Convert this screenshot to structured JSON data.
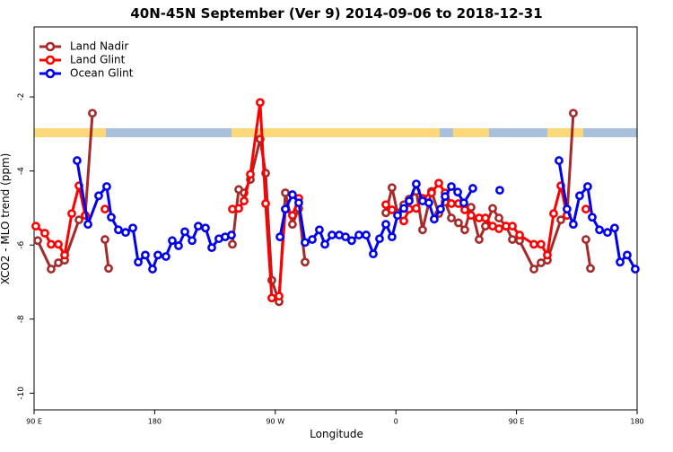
{
  "chart_data": {
    "type": "line",
    "title": "40N-45N September (Ver 9)   2014-09-06 to 2018-12-31",
    "x_label": "Longitude",
    "y_label": "XCO2 - MLO trend (ppm)",
    "xlim": [
      90,
      540
    ],
    "xticks": [
      {
        "value": 90,
        "label": "90 E"
      },
      180,
      {
        "value": 270,
        "label": "90 W"
      },
      {
        "value": 360,
        "label": "0"
      },
      {
        "value": 450,
        "label": "90 E"
      },
      {
        "value": 540,
        "label": "180"
      }
    ],
    "ylim": [
      -10.45,
      -0.11
    ],
    "yticks": [
      -10,
      -8,
      -6,
      -4,
      -2
    ],
    "legend": "top-left",
    "series": [
      {
        "name": "Land Nadir",
        "color": "#a52a2a",
        "x": [
          92.7,
          102.7,
          108.1,
          112.8,
          123.5,
          128.2,
          133.5,
          null,
          142.9,
          145.6,
          null,
          238.0,
          242.7,
          246.7,
          251.4,
          258.7,
          262.8,
          267.4,
          272.8,
          277.5,
          282.8,
          287.5,
          292.2,
          null,
          352.5,
          357.1,
          361.2,
          365.9,
          369.9,
          375.2,
          379.9,
          386.6,
          392.0,
          396.7,
          401.4,
          406.7,
          411.4,
          416.1,
          422.1,
          426.8,
          432.2,
          436.9,
          442.2,
          446.9,
          452.3,
          463.0,
          468.3,
          473.0,
          483.1,
          487.7,
          492.4,
          null,
          501.8,
          505.2
        ],
        "values": [
          -5.88,
          -6.65,
          -6.48,
          -6.41,
          -5.32,
          -5.2,
          -2.44,
          null,
          -5.85,
          -6.63,
          null,
          -5.98,
          -4.5,
          -4.59,
          -4.23,
          -3.14,
          -4.06,
          -6.95,
          -7.53,
          -4.59,
          -5.44,
          -5.01,
          -6.46,
          null,
          -5.13,
          -4.45,
          -5.13,
          -4.91,
          -4.76,
          -4.55,
          -5.59,
          -4.55,
          -5.15,
          -4.84,
          -5.27,
          -5.4,
          -5.59,
          -4.98,
          -5.85,
          -5.49,
          -5.01,
          -5.27,
          -5.49,
          -5.85,
          -5.88,
          -6.65,
          -6.48,
          -6.41,
          -5.32,
          -5.2,
          -2.44,
          null,
          -5.85,
          -6.63
        ]
      },
      {
        "name": "Land Glint",
        "color": "#ff0000",
        "x": [
          91.3,
          98.0,
          102.7,
          108.1,
          112.8,
          118.1,
          123.5,
          128.2,
          null,
          142.9,
          null,
          238.0,
          242.7,
          246.7,
          251.4,
          258.7,
          262.8,
          267.4,
          272.8,
          277.5,
          282.8,
          287.5,
          null,
          352.5,
          357.1,
          365.9,
          369.9,
          375.2,
          379.9,
          386.6,
          392.0,
          396.7,
          401.4,
          406.7,
          411.4,
          416.1,
          422.1,
          426.8,
          432.2,
          436.9,
          442.2,
          446.9,
          452.3,
          463.0,
          468.3,
          473.0,
          477.7,
          483.1,
          487.7,
          null,
          501.8
        ],
        "values": [
          -5.49,
          -5.68,
          -5.98,
          -5.98,
          -6.27,
          -5.15,
          -4.4,
          -5.2,
          null,
          -5.03,
          null,
          -5.03,
          -5.01,
          -4.81,
          -4.09,
          -2.15,
          -4.88,
          -7.43,
          -7.38,
          -5.03,
          -5.2,
          -4.74,
          null,
          -4.91,
          -5.05,
          -5.35,
          -5.03,
          -5.01,
          -4.74,
          -4.59,
          -4.33,
          -4.59,
          -4.88,
          -4.88,
          -5.05,
          -5.2,
          -5.27,
          -5.27,
          -5.49,
          -5.56,
          -5.49,
          -5.49,
          -5.73,
          -5.98,
          -5.98,
          -6.27,
          -5.15,
          -4.4,
          -5.2,
          null,
          -5.03
        ]
      },
      {
        "name": "Ocean Glint",
        "color": "#0000ee",
        "x": [
          122.1,
          130.2,
          138.2,
          144.2,
          147.6,
          152.9,
          158.3,
          163.7,
          167.7,
          173.0,
          178.4,
          182.4,
          188.4,
          193.1,
          197.8,
          202.5,
          207.9,
          212.5,
          217.9,
          222.6,
          227.9,
          232.6,
          237.3,
          null,
          273.5,
          277.5,
          282.8,
          287.5,
          292.2,
          297.6,
          302.9,
          307.0,
          312.3,
          317.7,
          322.4,
          327.0,
          332.4,
          337.8,
          343.1,
          347.8,
          352.5,
          357.1,
          361.2,
          365.9,
          369.9,
          375.2,
          379.9,
          384.6,
          388.6,
          393.3,
          396.7,
          401.4,
          406.1,
          410.7,
          417.4,
          null,
          437.5,
          null,
          481.7,
          487.7,
          492.4,
          497.1,
          503.1,
          506.5,
          511.9,
          517.9,
          523.2,
          527.3,
          532.6,
          538.6
        ],
        "values": [
          -3.72,
          -5.44,
          -4.67,
          -4.42,
          -5.25,
          -5.59,
          -5.66,
          -5.54,
          -6.46,
          -6.27,
          -6.65,
          -6.27,
          -6.31,
          -5.88,
          -6.02,
          -5.64,
          -5.88,
          -5.49,
          -5.54,
          -6.07,
          -5.83,
          -5.78,
          -5.73,
          null,
          -5.78,
          -5.03,
          -4.64,
          -4.86,
          -5.93,
          -5.85,
          -5.59,
          -5.98,
          -5.73,
          -5.73,
          -5.78,
          -5.88,
          -5.73,
          -5.73,
          -6.24,
          -5.83,
          -5.44,
          -5.78,
          -5.2,
          -5.01,
          -4.81,
          -4.35,
          -4.81,
          -4.86,
          -5.3,
          -5.03,
          -4.69,
          -4.42,
          -4.57,
          -4.86,
          -4.47,
          null,
          -4.52,
          null,
          -3.72,
          -5.03,
          -5.44,
          -4.67,
          -4.42,
          -5.25,
          -5.59,
          -5.66,
          -5.54,
          -6.46,
          -6.27,
          -6.65
        ]
      }
    ]
  }
}
